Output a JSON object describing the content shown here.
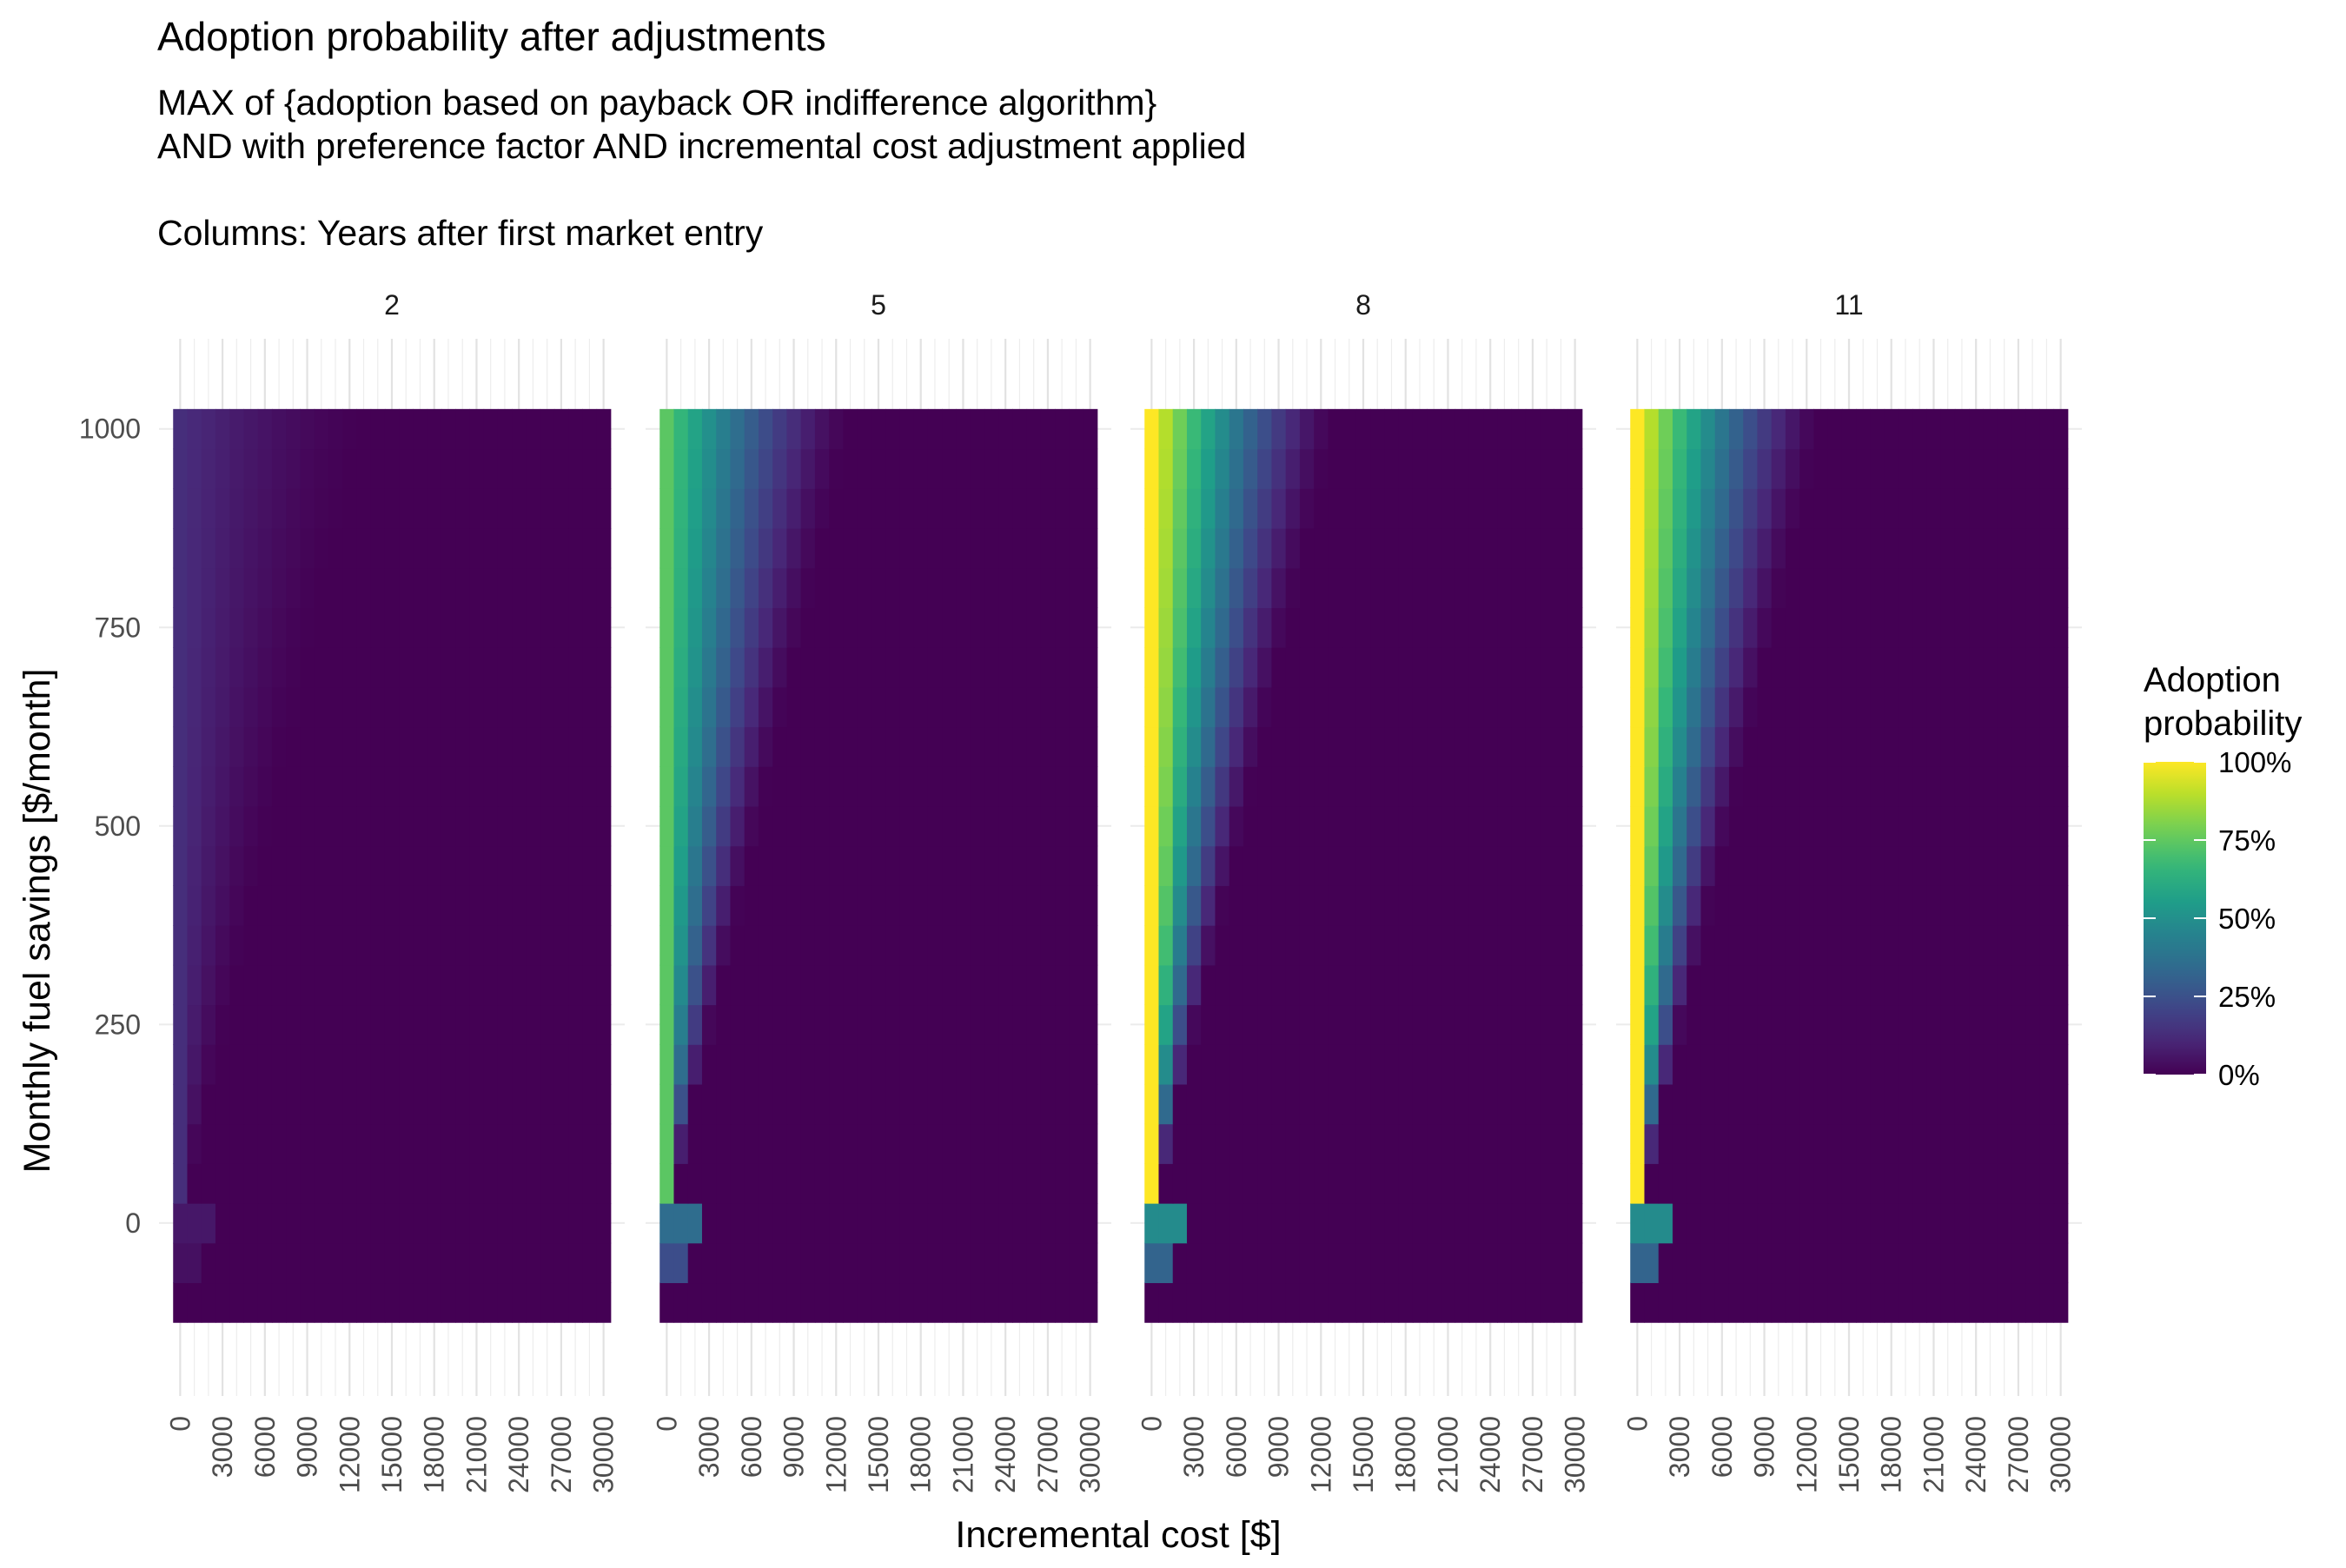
{
  "chart_data": {
    "type": "heatmap",
    "title": "Adoption probability after adjustments",
    "subtitle_lines": [
      "MAX of {adoption based on payback OR indifference algorithm}",
      "AND with preference factor AND incremental cost adjustment applied",
      "",
      "Columns: Years after first market entry"
    ],
    "xlabel": "Incremental cost [$]",
    "ylabel": "Monthly fuel savings [$/month]",
    "facet_label": "Years after first market entry",
    "facets": [
      "2",
      "5",
      "8",
      "11"
    ],
    "facet_base_probability": [
      0.13,
      0.74,
      1.0,
      1.0
    ],
    "facet_max_probability": [
      0.13,
      0.74,
      1.0,
      1.0
    ],
    "x_values": [
      0,
      1000,
      2000,
      3000,
      4000,
      5000,
      6000,
      7000,
      8000,
      9000,
      10000,
      11000,
      12000,
      13000,
      14000,
      15000,
      16000,
      17000,
      18000,
      19000,
      20000,
      21000,
      22000,
      23000,
      24000,
      25000,
      26000,
      27000,
      28000,
      29000,
      30000
    ],
    "x_ticks": [
      "0",
      "3000",
      "6000",
      "9000",
      "12000",
      "15000",
      "18000",
      "21000",
      "24000",
      "27000",
      "30000"
    ],
    "x_tick_values": [
      0,
      3000,
      6000,
      9000,
      12000,
      15000,
      18000,
      21000,
      24000,
      27000,
      30000
    ],
    "y_values": [
      -100,
      -50,
      0,
      50,
      100,
      150,
      200,
      250,
      300,
      350,
      400,
      450,
      500,
      550,
      600,
      650,
      700,
      750,
      800,
      850,
      900,
      950,
      1000
    ],
    "y_ticks": [
      "0",
      "250",
      "500",
      "750",
      "1000"
    ],
    "y_tick_values": [
      0,
      250,
      500,
      750,
      1000
    ],
    "x_range": [
      -1500,
      31500
    ],
    "y_range": [
      -150,
      1050
    ],
    "legend": {
      "title_lines": [
        "Adoption",
        "probability"
      ],
      "labels": [
        "100%",
        "75%",
        "50%",
        "25%",
        "0%"
      ],
      "values": [
        1.0,
        0.75,
        0.5,
        0.25,
        0.0
      ],
      "placement": "right"
    },
    "colorscale": "viridis",
    "colors": [
      "#440154",
      "#482878",
      "#3e4989",
      "#31688e",
      "#26828e",
      "#1f9e89",
      "#35b779",
      "#6ece58",
      "#b5de2b",
      "#fde725"
    ],
    "grid": true
  }
}
